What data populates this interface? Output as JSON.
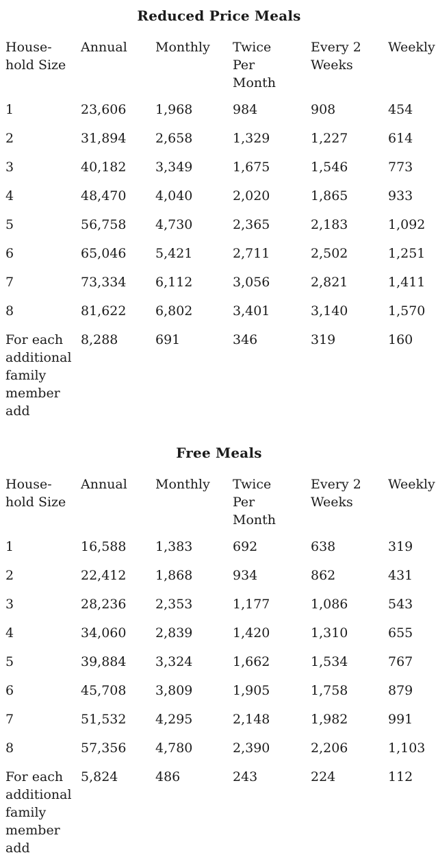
{
  "page": {
    "background_color": "#ffffff",
    "text_color": "#1b1b1b"
  },
  "sections": [
    {
      "title": "Reduced Price Meals",
      "columns": [
        "House-\nhold Size",
        "Annual",
        "Monthly",
        "Twice\nPer\nMonth",
        "Every 2\nWeeks",
        "Weekly"
      ],
      "rows": [
        {
          "cells": [
            "1",
            "23,606",
            "1,968",
            "984",
            "908",
            "454"
          ]
        },
        {
          "cells": [
            "2",
            "31,894",
            "2,658",
            "1,329",
            "1,227",
            "614"
          ]
        },
        {
          "cells": [
            "3",
            "40,182",
            "3,349",
            "1,675",
            "1,546",
            "773"
          ]
        },
        {
          "cells": [
            "4",
            "48,470",
            "4,040",
            "2,020",
            "1,865",
            "933"
          ]
        },
        {
          "cells": [
            "5",
            "56,758",
            "4,730",
            "2,365",
            "2,183",
            "1,092"
          ]
        },
        {
          "cells": [
            "6",
            "65,046",
            "5,421",
            "2,711",
            "2,502",
            "1,251"
          ]
        },
        {
          "cells": [
            "7",
            "73,334",
            "6,112",
            "3,056",
            "2,821",
            "1,411"
          ]
        },
        {
          "cells": [
            "8",
            "81,622",
            "6,802",
            "3,401",
            "3,140",
            "1,570"
          ]
        },
        {
          "cells": [
            "For each\nadditional\nfamily\nmember\nadd",
            "8,288",
            "691",
            "346",
            "319",
            "160"
          ],
          "label_small": true
        }
      ]
    },
    {
      "title": "Free Meals",
      "columns": [
        "House-\nhold Size",
        "Annual",
        "Monthly",
        "Twice\nPer\nMonth",
        "Every 2\nWeeks",
        "Weekly"
      ],
      "rows": [
        {
          "cells": [
            "1",
            "16,588",
            "1,383",
            "692",
            "638",
            "319"
          ]
        },
        {
          "cells": [
            "2",
            "22,412",
            "1,868",
            "934",
            "862",
            "431"
          ]
        },
        {
          "cells": [
            "3",
            "28,236",
            "2,353",
            "1,177",
            "1,086",
            "543"
          ]
        },
        {
          "cells": [
            "4",
            "34,060",
            "2,839",
            "1,420",
            "1,310",
            "655"
          ]
        },
        {
          "cells": [
            "5",
            "39,884",
            "3,324",
            "1,662",
            "1,534",
            "767"
          ]
        },
        {
          "cells": [
            "6",
            "45,708",
            "3,809",
            "1,905",
            "1,758",
            "879"
          ]
        },
        {
          "cells": [
            "7",
            "51,532",
            "4,295",
            "2,148",
            "1,982",
            "991"
          ]
        },
        {
          "cells": [
            "8",
            "57,356",
            "4,780",
            "2,390",
            "2,206",
            "1,103"
          ]
        },
        {
          "cells": [
            "For each\nadditional\nfamily\nmember\nadd",
            "5,824",
            "486",
            "243",
            "224",
            "112"
          ],
          "label_small": true
        }
      ]
    }
  ]
}
